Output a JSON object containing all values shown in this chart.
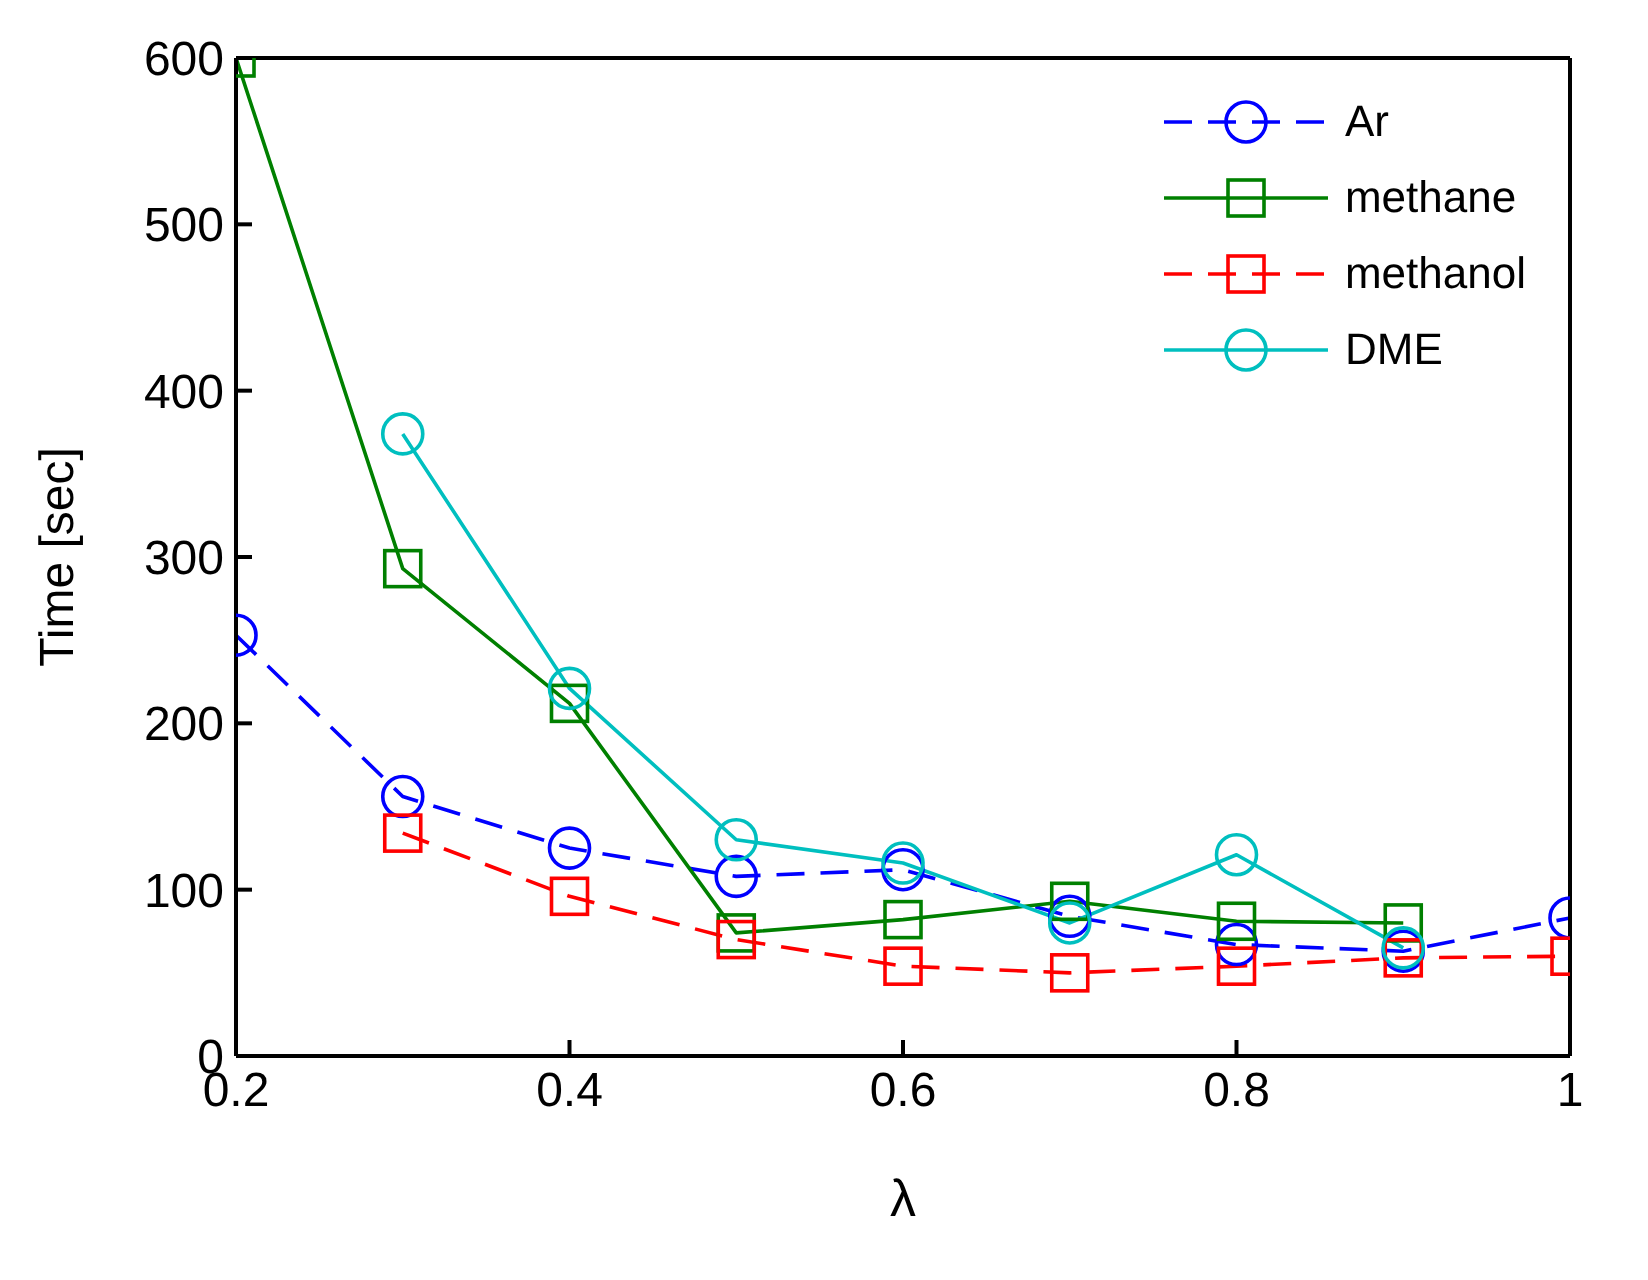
{
  "chart_data": {
    "type": "line",
    "xlabel": "λ",
    "ylabel": "Time [sec]",
    "x": [
      0.2,
      0.3,
      0.4,
      0.5,
      0.6,
      0.7,
      0.8,
      0.9,
      1.0
    ],
    "xlim": [
      0.2,
      1
    ],
    "xticks": [
      0.2,
      0.4,
      0.6,
      0.8,
      1
    ],
    "ylim": [
      0,
      600
    ],
    "yticks": [
      0,
      100,
      200,
      300,
      400,
      500,
      600
    ],
    "grid": false,
    "legend": "top right",
    "series": [
      {
        "name": "Ar",
        "color": "#0000ff",
        "marker": "circle",
        "line_style": "dashed",
        "values": [
          253,
          156,
          125,
          108,
          112,
          84,
          67,
          63,
          83
        ]
      },
      {
        "name": "methane",
        "color": "#008000",
        "marker": "square",
        "line_style": "solid",
        "values": [
          600,
          293,
          212,
          74,
          82,
          93,
          81,
          80,
          null
        ]
      },
      {
        "name": "methanol",
        "color": "#ff0000",
        "marker": "square",
        "line_style": "dashed",
        "values": [
          null,
          134,
          96,
          70,
          54,
          50,
          54,
          59,
          60
        ]
      },
      {
        "name": "DME",
        "color": "#00bfbf",
        "marker": "circle",
        "line_style": "solid",
        "values": [
          null,
          374,
          221,
          130,
          116,
          80,
          121,
          65,
          null
        ]
      }
    ]
  }
}
